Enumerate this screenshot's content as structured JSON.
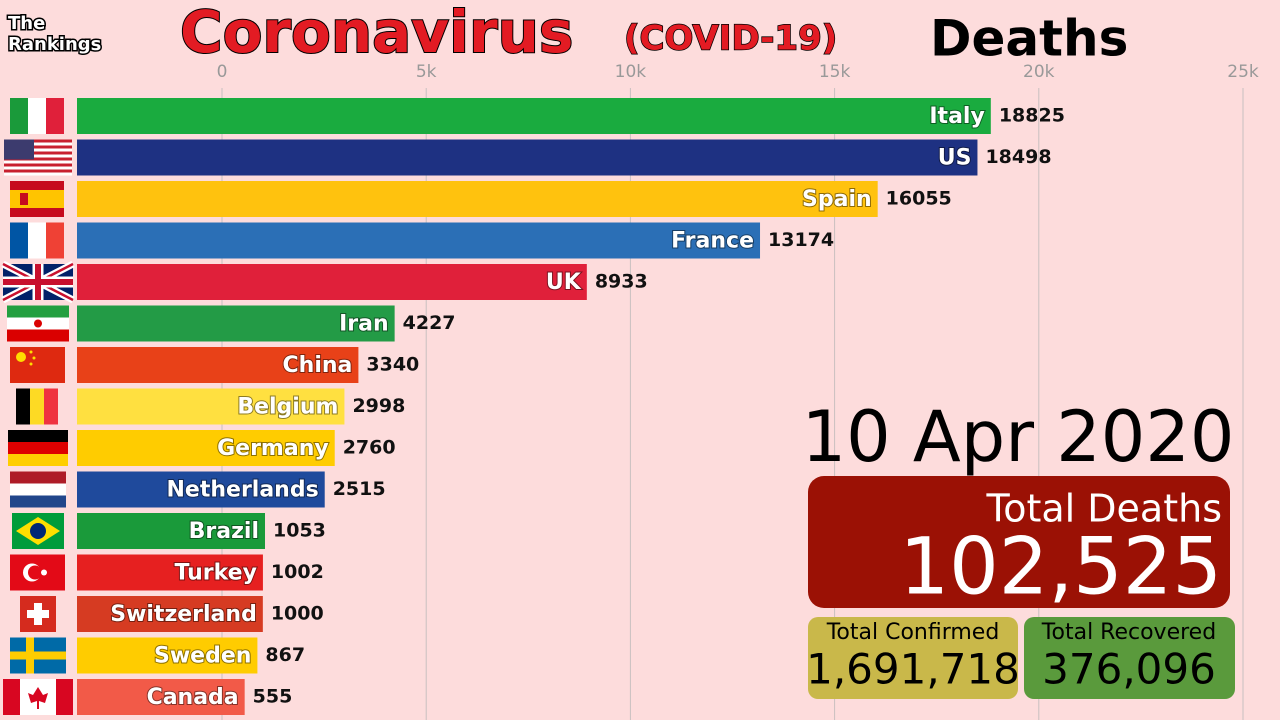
{
  "logo": {
    "line1": "The",
    "line2": "Rankings"
  },
  "chart_data": {
    "type": "bar",
    "orientation": "horizontal",
    "title": "Coronavirus",
    "subtitle": "(COVID-19)",
    "metric": "Deaths",
    "categories": [
      "Italy",
      "US",
      "Spain",
      "France",
      "UK",
      "Iran",
      "China",
      "Belgium",
      "Germany",
      "Netherlands",
      "Brazil",
      "Turkey",
      "Switzerland",
      "Sweden",
      "Canada"
    ],
    "values": [
      18825,
      18498,
      16055,
      13174,
      8933,
      4227,
      3340,
      2998,
      2760,
      2515,
      1053,
      1002,
      1000,
      867,
      555
    ],
    "colors": [
      "#1aab3f",
      "#1e3182",
      "#ffc20e",
      "#2b6fb6",
      "#e0203a",
      "#239b46",
      "#e84118",
      "#ffe040",
      "#ffcc00",
      "#1f4a9c",
      "#1a9a3a",
      "#e62020",
      "#d63b22",
      "#ffcc00",
      "#f25a48"
    ],
    "xlim": [
      0,
      25000
    ],
    "xticks": [
      0,
      {
        "value": 5000,
        "label": "5k"
      },
      {
        "value": 10000,
        "label": "10k"
      },
      {
        "value": 15000,
        "label": "15k"
      },
      {
        "value": 20000,
        "label": "20k"
      },
      {
        "value": 25000,
        "label": "25k"
      }
    ],
    "grid": true
  },
  "date": "10 Apr 2020",
  "totals": {
    "deaths_label": "Total Deaths",
    "deaths": "102,525",
    "confirmed_label": "Total Confirmed",
    "confirmed": "1,691,718",
    "recovered_label": "Total Recovered",
    "recovered": "376,096"
  }
}
